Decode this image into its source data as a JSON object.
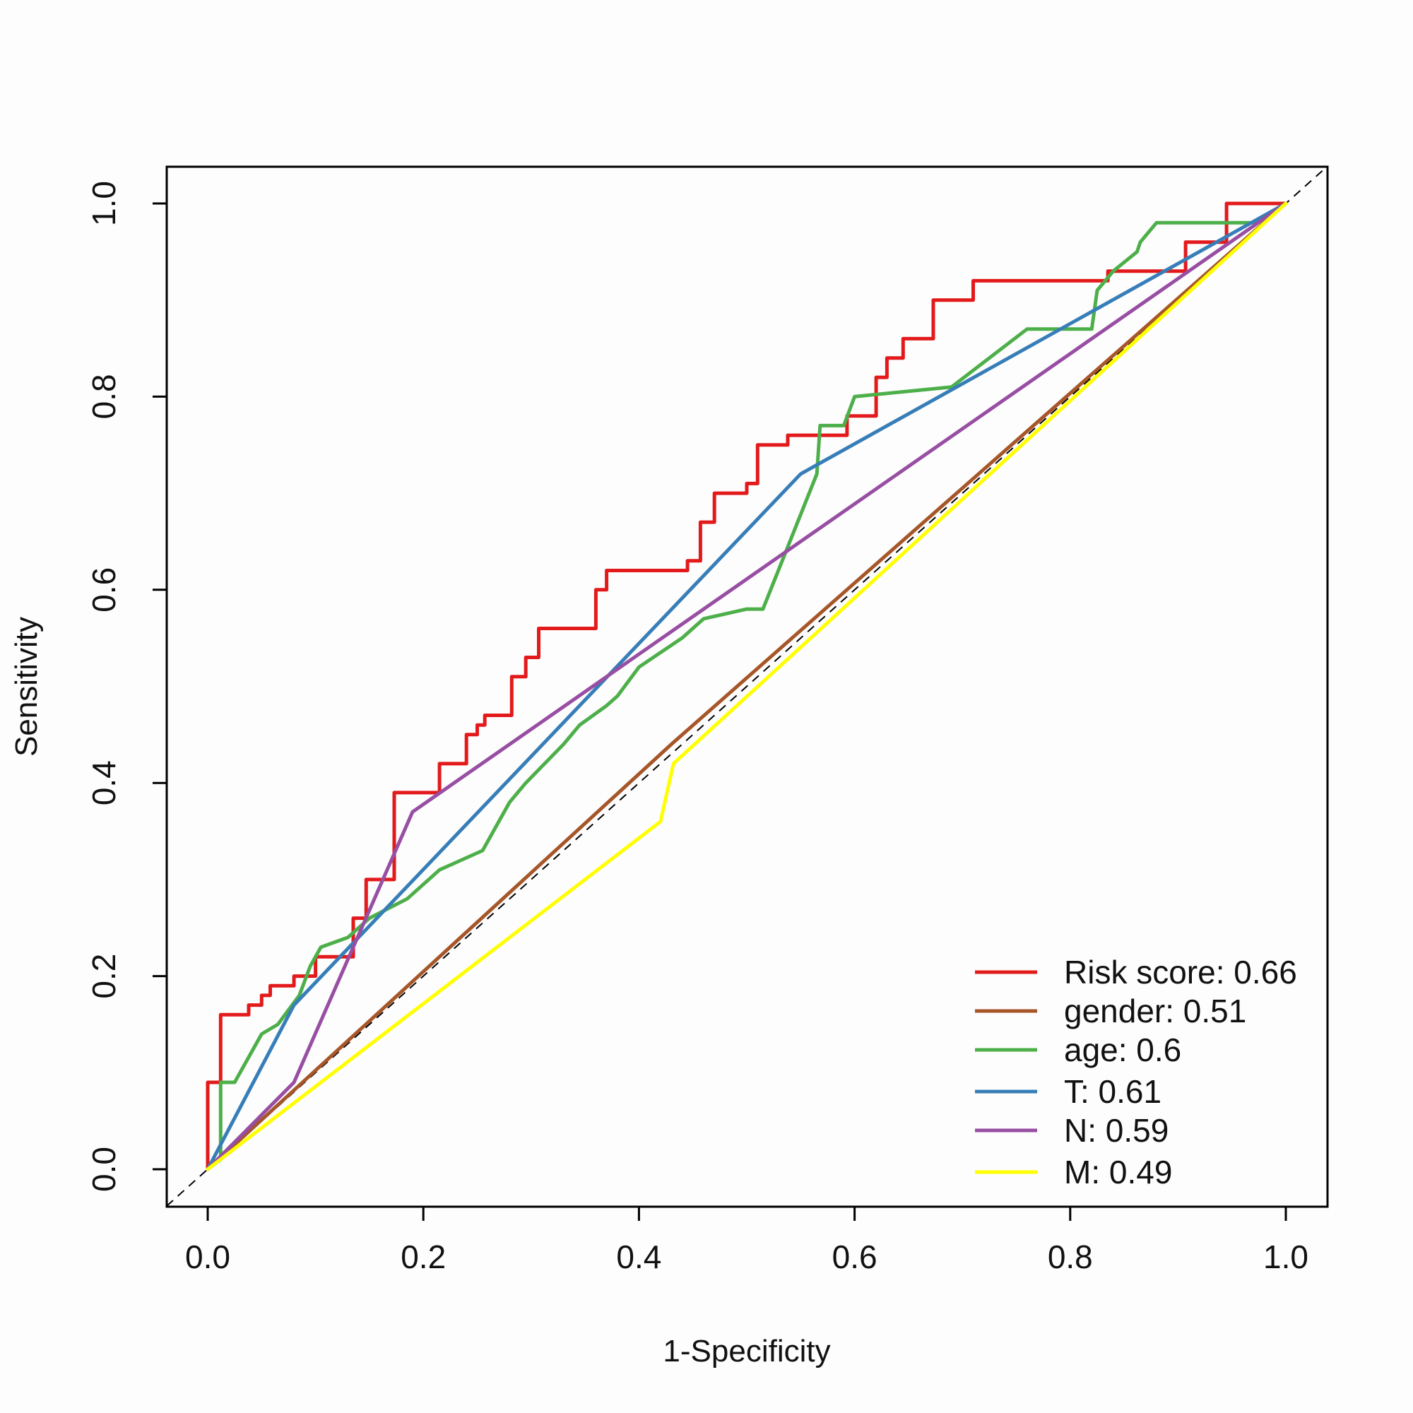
{
  "chart_data": {
    "type": "line",
    "title": "",
    "xlabel": "1-Specificity",
    "ylabel": "Sensitivity",
    "xlim": [
      0,
      1
    ],
    "ylim": [
      0,
      1
    ],
    "x_ticks": [
      "0.0",
      "0.2",
      "0.4",
      "0.6",
      "0.8",
      "1.0"
    ],
    "y_ticks": [
      "0.0",
      "0.2",
      "0.4",
      "0.6",
      "0.8",
      "1.0"
    ],
    "grid": false,
    "legend_position": "bottom-right",
    "reference_line": {
      "from": [
        0,
        0
      ],
      "to": [
        1,
        1
      ],
      "style": "dashed",
      "color": "#000000"
    },
    "series": [
      {
        "name": "Risk score: 0.66",
        "color": "#e31a1c",
        "step": true,
        "points": [
          [
            0,
            0
          ],
          [
            0,
            0.09
          ],
          [
            0.012,
            0.09
          ],
          [
            0.012,
            0.16
          ],
          [
            0.038,
            0.16
          ],
          [
            0.038,
            0.17
          ],
          [
            0.05,
            0.17
          ],
          [
            0.05,
            0.18
          ],
          [
            0.058,
            0.18
          ],
          [
            0.058,
            0.19
          ],
          [
            0.08,
            0.19
          ],
          [
            0.08,
            0.2
          ],
          [
            0.1,
            0.2
          ],
          [
            0.1,
            0.22
          ],
          [
            0.135,
            0.22
          ],
          [
            0.135,
            0.26
          ],
          [
            0.147,
            0.26
          ],
          [
            0.147,
            0.3
          ],
          [
            0.173,
            0.3
          ],
          [
            0.173,
            0.39
          ],
          [
            0.215,
            0.39
          ],
          [
            0.215,
            0.42
          ],
          [
            0.24,
            0.42
          ],
          [
            0.24,
            0.45
          ],
          [
            0.25,
            0.45
          ],
          [
            0.25,
            0.46
          ],
          [
            0.257,
            0.46
          ],
          [
            0.257,
            0.47
          ],
          [
            0.282,
            0.47
          ],
          [
            0.282,
            0.51
          ],
          [
            0.295,
            0.51
          ],
          [
            0.295,
            0.53
          ],
          [
            0.307,
            0.53
          ],
          [
            0.307,
            0.56
          ],
          [
            0.36,
            0.56
          ],
          [
            0.36,
            0.6
          ],
          [
            0.37,
            0.6
          ],
          [
            0.37,
            0.62
          ],
          [
            0.445,
            0.62
          ],
          [
            0.445,
            0.63
          ],
          [
            0.457,
            0.63
          ],
          [
            0.457,
            0.67
          ],
          [
            0.47,
            0.67
          ],
          [
            0.47,
            0.7
          ],
          [
            0.5,
            0.7
          ],
          [
            0.5,
            0.71
          ],
          [
            0.51,
            0.71
          ],
          [
            0.51,
            0.75
          ],
          [
            0.538,
            0.75
          ],
          [
            0.538,
            0.76
          ],
          [
            0.593,
            0.76
          ],
          [
            0.593,
            0.78
          ],
          [
            0.62,
            0.78
          ],
          [
            0.62,
            0.82
          ],
          [
            0.63,
            0.82
          ],
          [
            0.63,
            0.84
          ],
          [
            0.645,
            0.84
          ],
          [
            0.645,
            0.86
          ],
          [
            0.673,
            0.86
          ],
          [
            0.673,
            0.9
          ],
          [
            0.71,
            0.9
          ],
          [
            0.71,
            0.92
          ],
          [
            0.835,
            0.92
          ],
          [
            0.835,
            0.93
          ],
          [
            0.907,
            0.93
          ],
          [
            0.907,
            0.96
          ],
          [
            0.945,
            0.96
          ],
          [
            0.945,
            1.0
          ],
          [
            1,
            1
          ]
        ]
      },
      {
        "name": "gender: 0.51",
        "color": "#a65628",
        "step": false,
        "points": [
          [
            0,
            0
          ],
          [
            0.43,
            0.44
          ],
          [
            1,
            1
          ]
        ]
      },
      {
        "name": "age: 0.6",
        "color": "#4daf4a",
        "step": false,
        "points": [
          [
            0,
            0
          ],
          [
            0.012,
            0.01
          ],
          [
            0.012,
            0.09
          ],
          [
            0.025,
            0.09
          ],
          [
            0.05,
            0.14
          ],
          [
            0.065,
            0.15
          ],
          [
            0.085,
            0.18
          ],
          [
            0.095,
            0.21
          ],
          [
            0.105,
            0.23
          ],
          [
            0.13,
            0.24
          ],
          [
            0.15,
            0.26
          ],
          [
            0.185,
            0.28
          ],
          [
            0.215,
            0.31
          ],
          [
            0.255,
            0.33
          ],
          [
            0.28,
            0.38
          ],
          [
            0.295,
            0.4
          ],
          [
            0.33,
            0.44
          ],
          [
            0.345,
            0.46
          ],
          [
            0.37,
            0.48
          ],
          [
            0.38,
            0.49
          ],
          [
            0.4,
            0.52
          ],
          [
            0.44,
            0.55
          ],
          [
            0.46,
            0.57
          ],
          [
            0.5,
            0.58
          ],
          [
            0.515,
            0.58
          ],
          [
            0.565,
            0.72
          ],
          [
            0.568,
            0.77
          ],
          [
            0.59,
            0.77
          ],
          [
            0.6,
            0.8
          ],
          [
            0.69,
            0.81
          ],
          [
            0.76,
            0.87
          ],
          [
            0.82,
            0.87
          ],
          [
            0.825,
            0.91
          ],
          [
            0.84,
            0.93
          ],
          [
            0.862,
            0.95
          ],
          [
            0.865,
            0.96
          ],
          [
            0.88,
            0.98
          ],
          [
            0.97,
            0.98
          ],
          [
            1,
            1
          ]
        ]
      },
      {
        "name": "T: 0.61",
        "color": "#377eb8",
        "step": false,
        "points": [
          [
            0,
            0
          ],
          [
            0.08,
            0.17
          ],
          [
            0.55,
            0.72
          ],
          [
            1,
            1
          ]
        ]
      },
      {
        "name": "N: 0.59",
        "color": "#984ea3",
        "step": false,
        "points": [
          [
            0,
            0
          ],
          [
            0.08,
            0.09
          ],
          [
            0.19,
            0.37
          ],
          [
            1,
            1
          ]
        ]
      },
      {
        "name": "M: 0.49",
        "color": "#ffff00",
        "step": false,
        "points": [
          [
            0,
            0
          ],
          [
            0.42,
            0.36
          ],
          [
            0.432,
            0.42
          ],
          [
            1,
            1
          ]
        ]
      }
    ]
  }
}
